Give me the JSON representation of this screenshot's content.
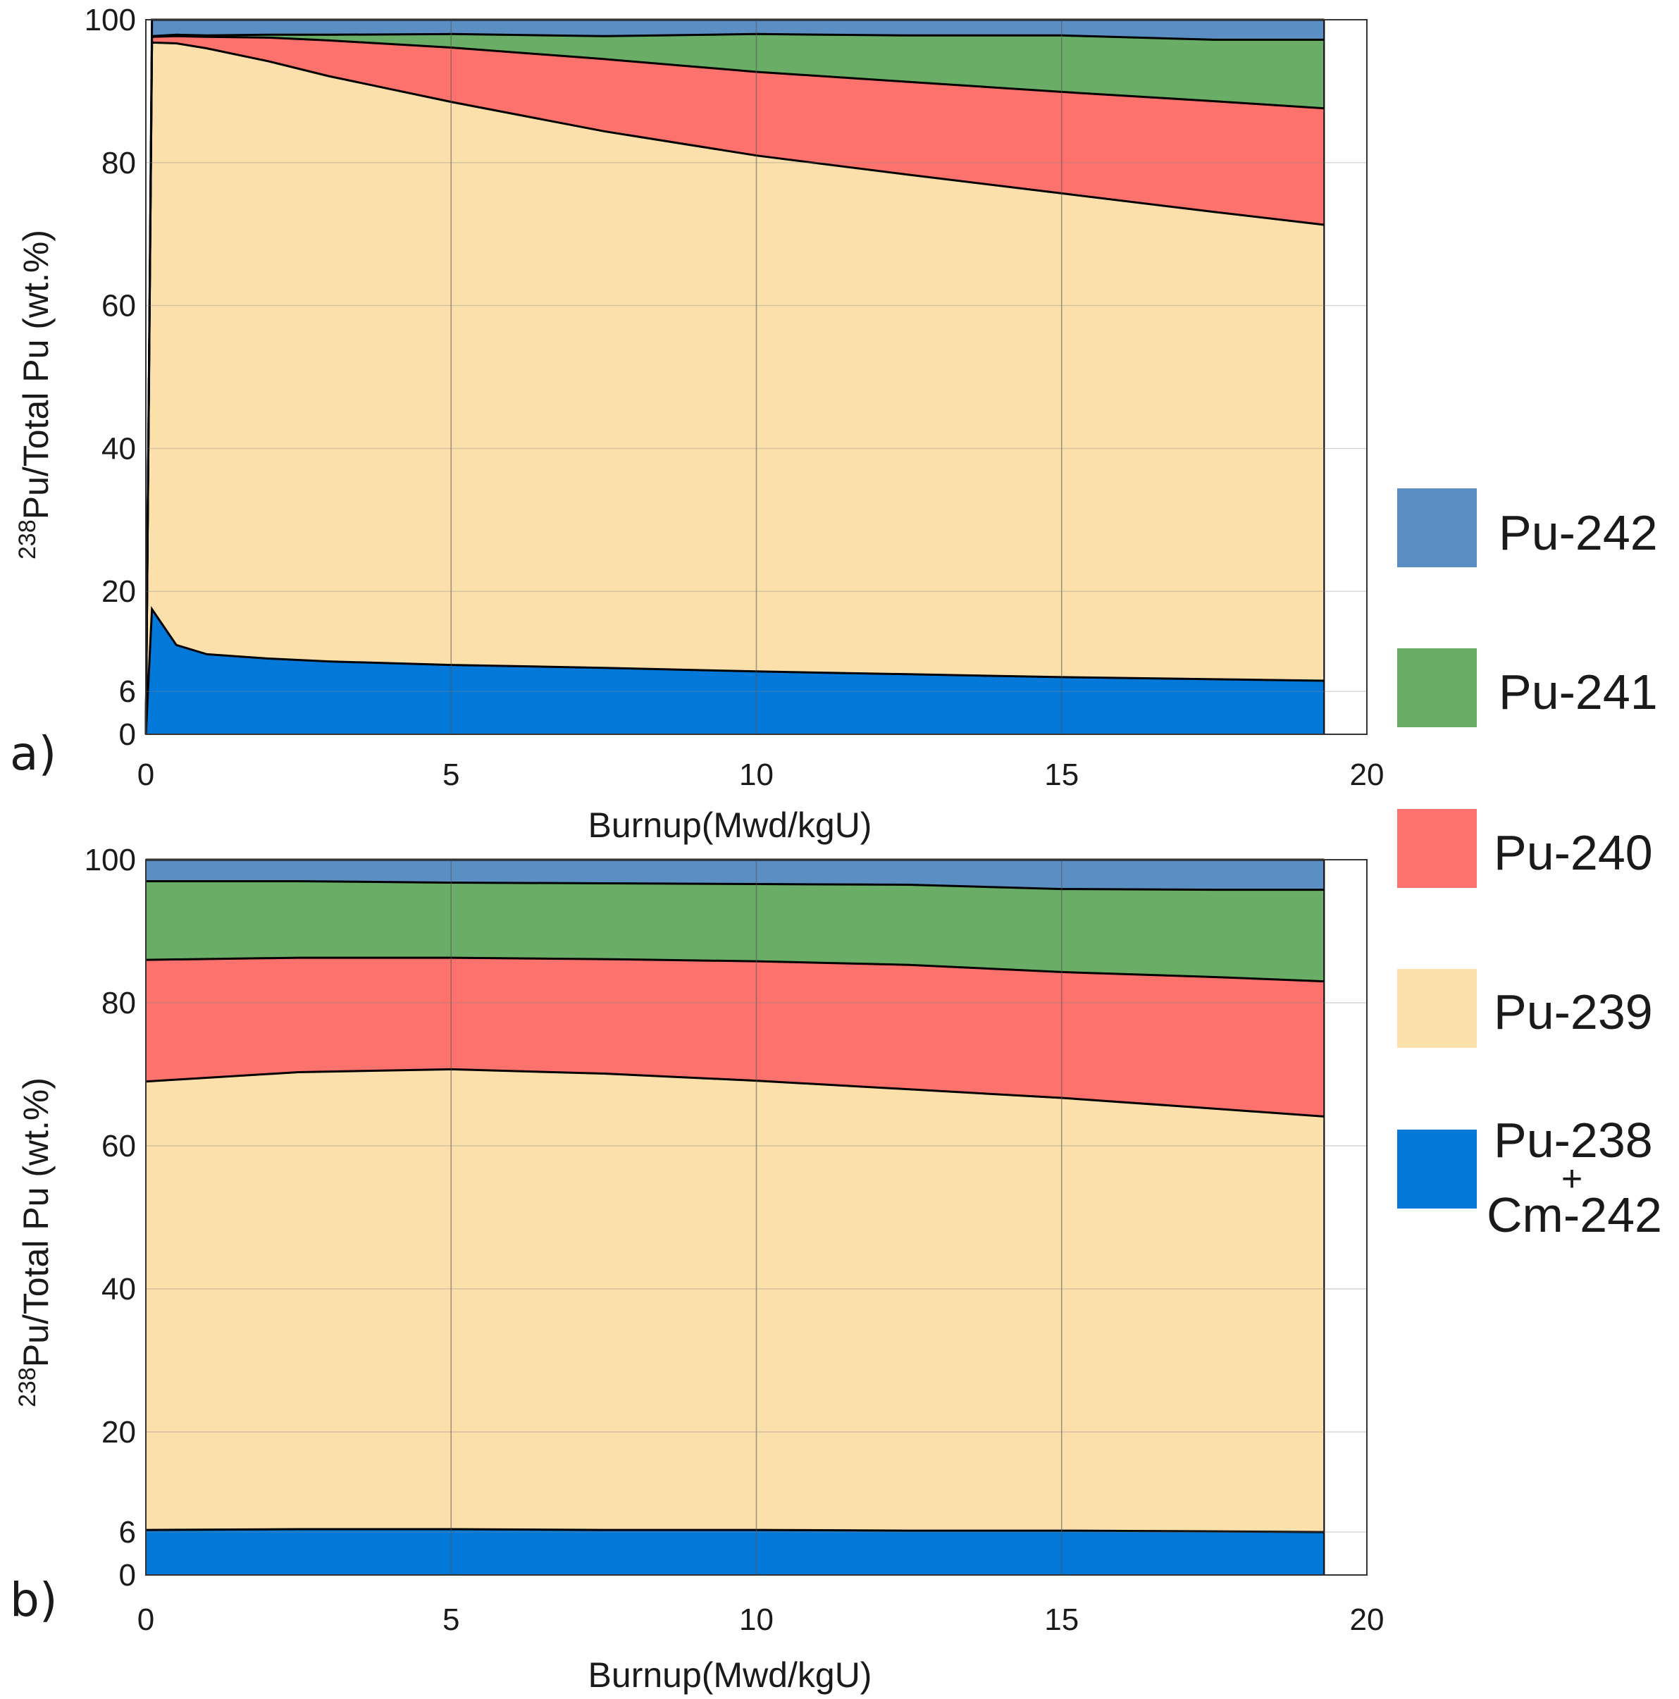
{
  "chart_data": [
    {
      "type": "area",
      "stacked": true,
      "panel_label": "a)",
      "xlabel": "Burnup(Mwd/kgU)",
      "ylabel": {
        "superscript": "238",
        "text": "Pu/Total Pu (wt.%)"
      },
      "xlim": [
        0,
        20
      ],
      "ylim": [
        0,
        100
      ],
      "xticks": [
        "0",
        "5",
        "10",
        "15",
        "20"
      ],
      "yticks": [
        "0",
        "6",
        "20",
        "40",
        "60",
        "80",
        "100"
      ],
      "x": [
        0,
        0.1,
        0.5,
        1,
        2,
        3,
        5,
        7.5,
        10,
        12.5,
        15,
        17.5,
        19.3
      ],
      "series": [
        {
          "name": "Pu-238 + Cm-242",
          "values": [
            0,
            17.5,
            12.5,
            11.2,
            10.6,
            10.2,
            9.7,
            9.3,
            8.8,
            8.4,
            8.0,
            7.7,
            7.5
          ]
        },
        {
          "name": "Pu-239",
          "values": [
            0,
            79.3,
            84.2,
            84.8,
            83.6,
            81.9,
            78.8,
            75.1,
            72.2,
            69.9,
            67.7,
            65.4,
            63.8
          ]
        },
        {
          "name": "Pu-240",
          "values": [
            0,
            0.8,
            1.0,
            1.6,
            3.3,
            5.0,
            7.6,
            10.1,
            11.7,
            13.0,
            14.2,
            15.5,
            16.3
          ]
        },
        {
          "name": "Pu-241",
          "values": [
            0,
            0.1,
            0.2,
            0.2,
            0.4,
            0.8,
            1.9,
            3.2,
            5.3,
            6.5,
            7.9,
            8.6,
            9.6
          ]
        },
        {
          "name": "Pu-242",
          "values": [
            0,
            2.3,
            2.1,
            2.2,
            2.1,
            2.1,
            2.0,
            2.3,
            2.0,
            2.2,
            2.2,
            2.8,
            2.8
          ]
        }
      ]
    },
    {
      "type": "area",
      "stacked": true,
      "panel_label": "b)",
      "xlabel": "Burnup(Mwd/kgU)",
      "ylabel": {
        "superscript": "238",
        "text": "Pu/Total Pu (wt.%)"
      },
      "xlim": [
        0,
        20
      ],
      "ylim": [
        0,
        100
      ],
      "xticks": [
        "0",
        "5",
        "10",
        "15",
        "20"
      ],
      "yticks": [
        "0",
        "6",
        "20",
        "40",
        "60",
        "80",
        "100"
      ],
      "x": [
        0,
        2.5,
        5,
        7.5,
        10,
        12.5,
        15,
        17.5,
        19.3
      ],
      "series": [
        {
          "name": "Pu-238 + Cm-242",
          "values": [
            6.3,
            6.4,
            6.4,
            6.3,
            6.3,
            6.2,
            6.2,
            6.1,
            6.0
          ]
        },
        {
          "name": "Pu-239",
          "values": [
            62.7,
            63.9,
            64.3,
            63.8,
            62.8,
            61.7,
            60.5,
            59.1,
            58.1
          ]
        },
        {
          "name": "Pu-240",
          "values": [
            17.0,
            16.0,
            15.6,
            16.0,
            16.7,
            17.4,
            17.6,
            18.4,
            18.9
          ]
        },
        {
          "name": "Pu-241",
          "values": [
            11.0,
            10.7,
            10.5,
            10.6,
            10.8,
            11.2,
            11.6,
            12.2,
            12.8
          ]
        },
        {
          "name": "Pu-242",
          "values": [
            3.0,
            3.0,
            3.2,
            3.3,
            3.4,
            3.5,
            4.1,
            4.2,
            4.2
          ]
        }
      ]
    }
  ],
  "legend": [
    {
      "label": "Pu-242",
      "color": "#5b8ec3"
    },
    {
      "label": "Pu-241",
      "color": "#69ad67"
    },
    {
      "label": "Pu-240",
      "color": "#fd726d"
    },
    {
      "label": "Pu-239",
      "color": "#fce0ac"
    },
    {
      "label_top": "Pu-238",
      "label_plus": "+",
      "label_bottom": "Cm-242",
      "color": "#0278d9"
    }
  ]
}
